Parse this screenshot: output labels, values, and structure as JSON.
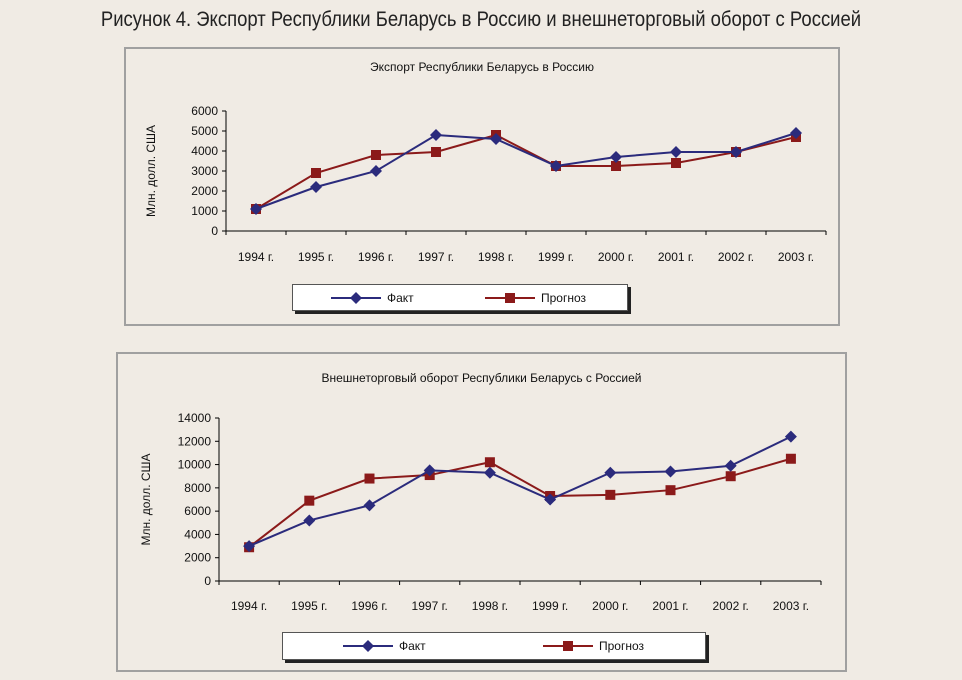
{
  "figure_title": "Рисунок 4. Экспорт Республики Беларусь в Россию и внешнеторговый оборот с Россией",
  "colors": {
    "fact": "#2b2b7c",
    "forecast": "#8b1a1a"
  },
  "chart_data": [
    {
      "type": "line",
      "title": "Экспорт Республики Беларусь в Россию",
      "ylabel": "Млн. долл. США",
      "xlabel": "",
      "categories": [
        "1994 г.",
        "1995 г.",
        "1996 г.",
        "1997 г.",
        "1998 г.",
        "1999 г.",
        "2000 г.",
        "2001 г.",
        "2002 г.",
        "2003 г."
      ],
      "ylim": [
        0,
        6000
      ],
      "yticks": [
        0,
        1000,
        2000,
        3000,
        4000,
        5000,
        6000
      ],
      "grid": false,
      "legend_position": "bottom",
      "series": [
        {
          "name": "Факт",
          "marker": "diamond",
          "values": [
            1100,
            2200,
            3000,
            4800,
            4600,
            3250,
            3700,
            3950,
            3950,
            4900
          ]
        },
        {
          "name": "Прогноз",
          "marker": "square",
          "values": [
            1100,
            2900,
            3800,
            3950,
            4800,
            3250,
            3250,
            3400,
            3950,
            4700
          ]
        }
      ]
    },
    {
      "type": "line",
      "title": "Внешнеторговый оборот Республики Беларусь с Россией",
      "ylabel": "Млн. долл. США",
      "xlabel": "",
      "categories": [
        "1994 г.",
        "1995 г.",
        "1996 г.",
        "1997 г.",
        "1998 г.",
        "1999 г.",
        "2000 г.",
        "2001 г.",
        "2002 г.",
        "2003 г."
      ],
      "ylim": [
        0,
        14000
      ],
      "yticks": [
        0,
        2000,
        4000,
        6000,
        8000,
        10000,
        12000,
        14000
      ],
      "grid": false,
      "legend_position": "bottom",
      "series": [
        {
          "name": "Факт",
          "marker": "diamond",
          "values": [
            3000,
            5200,
            6500,
            9500,
            9300,
            7000,
            9300,
            9400,
            9900,
            12400
          ]
        },
        {
          "name": "Прогноз",
          "marker": "square",
          "values": [
            2900,
            6900,
            8800,
            9100,
            10200,
            7300,
            7400,
            7800,
            9000,
            10500
          ]
        }
      ]
    }
  ]
}
